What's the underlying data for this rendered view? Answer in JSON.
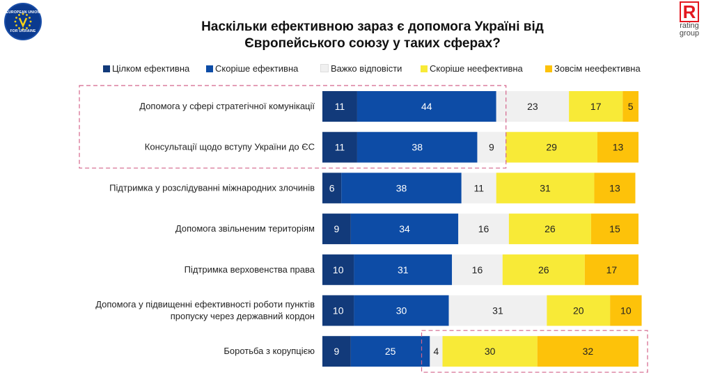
{
  "logos": {
    "left_text_top": "EUROPEAN UNION",
    "left_text_bottom": "FOR UKRAINE",
    "right_mark": "R",
    "right_text": [
      "rating",
      "group"
    ]
  },
  "chart_data": {
    "type": "bar",
    "orientation": "horizontal",
    "stacked": true,
    "title": "Наскільки ефективною зараз є допомога Україні від Європейського союзу у таких сферах?",
    "title_lines": [
      "Наскільки ефективною зараз є допомога Україні від",
      "Європейського союзу у таких сферах?"
    ],
    "legend_position": "top",
    "categories": [
      [
        "Допомога у сфері стратегічної комунікації"
      ],
      [
        "Консультації щодо вступу України до ЄС"
      ],
      [
        "Підтримка у розслідуванні міжнародних злочинів"
      ],
      [
        "Допомога звільненим територіям"
      ],
      [
        "Підтримка верховенства права"
      ],
      [
        "Допомога у підвищенні ефективності роботи пунктів",
        "пропуску через державний кордон"
      ],
      [
        "Боротьба з корупцією"
      ]
    ],
    "series": [
      {
        "name": "Цілком ефективна",
        "color": "#123a7a",
        "label_color": "#ffffff",
        "values": [
          11,
          11,
          6,
          9,
          10,
          10,
          9
        ]
      },
      {
        "name": "Скоріше ефективна",
        "color": "#0d4ca6",
        "label_color": "#ffffff",
        "values": [
          44,
          38,
          38,
          34,
          31,
          30,
          25
        ]
      },
      {
        "name": "Важко відповісти",
        "color": "#f0f0f0",
        "label_color": "#222222",
        "values": [
          23,
          9,
          11,
          16,
          16,
          31,
          4
        ]
      },
      {
        "name": "Скоріше неефективна",
        "color": "#f8ea37",
        "label_color": "#222222",
        "values": [
          17,
          29,
          31,
          26,
          26,
          20,
          30
        ]
      },
      {
        "name": "Зовсім неефективна",
        "color": "#fdc20a",
        "label_color": "#222222",
        "values": [
          5,
          13,
          13,
          15,
          17,
          10,
          32
        ]
      }
    ],
    "xlim": [
      0,
      100
    ],
    "grid": false,
    "highlights": [
      {
        "rows": [
          0,
          1
        ],
        "series_from": 0,
        "series_to": 1,
        "style": "dashed",
        "color": "#d4638a"
      },
      {
        "rows": [
          6
        ],
        "series_from": 3,
        "series_to": 4,
        "style": "dashed",
        "color": "#d4638a"
      }
    ]
  }
}
